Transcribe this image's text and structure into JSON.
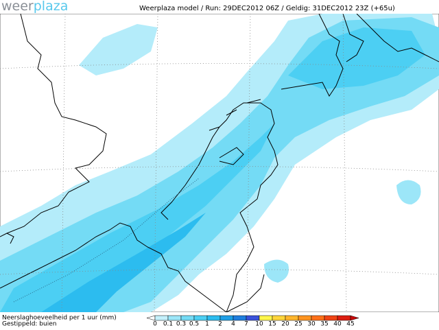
{
  "header": {
    "logo_weer": "weer",
    "logo_plaza": "plaza",
    "info": "Weerplaza model / Run: 29DEC2012 06Z / Geldig: 31DEC2012 23Z (+65u)"
  },
  "legend": {
    "title": "Neerslaghoeveelheid per 1 uur (mm)",
    "note": "Gestippeld: buien",
    "labels": [
      "0",
      "0.1",
      "0.3",
      "0.5",
      "1",
      "2",
      "4",
      "7",
      "10",
      "15",
      "20",
      "25",
      "30",
      "35",
      "40",
      "45"
    ],
    "colors": [
      "#ffffff",
      "#c4f0fb",
      "#9ce6f8",
      "#74dbf5",
      "#4ccff3",
      "#2cbcef",
      "#1f9fe6",
      "#1f7ede",
      "#3a52da",
      "#fff64a",
      "#ffd53a",
      "#ffb52c",
      "#ff9420",
      "#ff7018",
      "#f04414",
      "#dc1e10",
      "#c80a0a"
    ]
  }
}
